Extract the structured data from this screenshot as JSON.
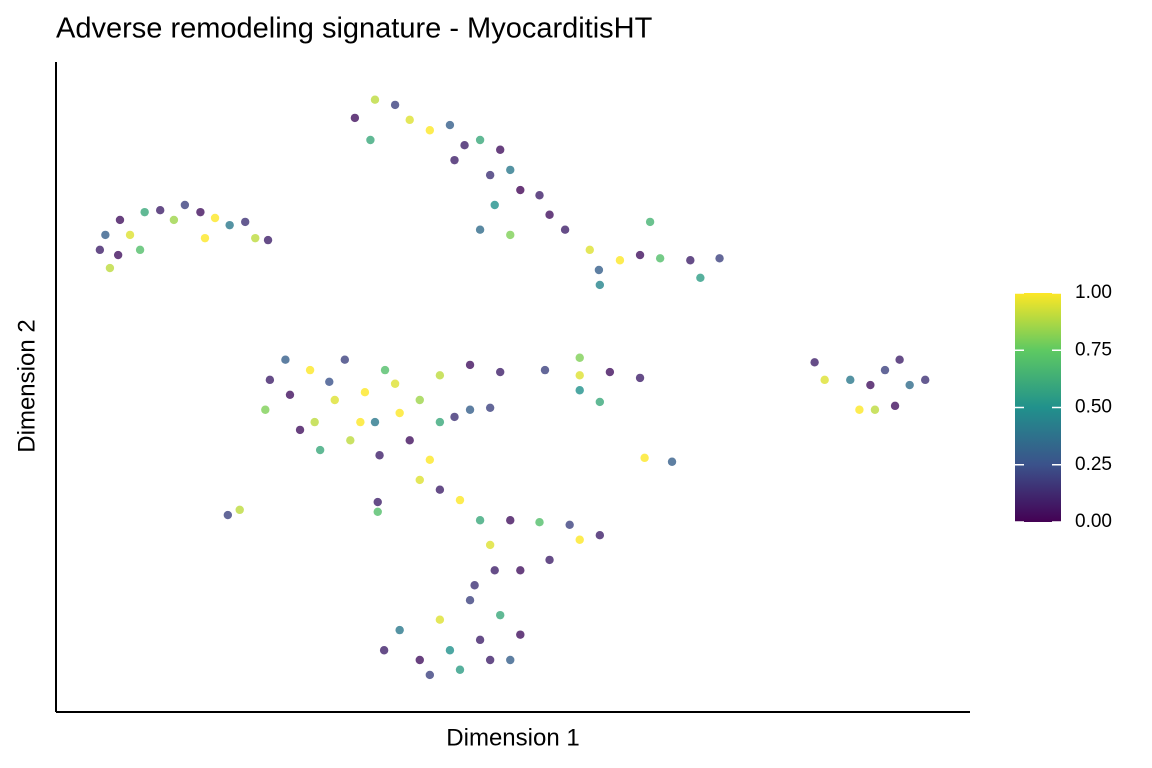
{
  "chart_data": {
    "type": "scatter",
    "title": "Adverse remodeling signature - MyocarditisHT",
    "x_label": "Dimension 1",
    "y_label": "Dimension 2",
    "xlim": [
      0,
      100
    ],
    "ylim": [
      0,
      100
    ],
    "x": [
      4.8,
      5.9,
      5.4,
      7.0,
      8.1,
      9.7,
      11.4,
      12.9,
      14.1,
      15.8,
      17.4,
      19.0,
      20.7,
      21.8,
      23.2,
      9.2,
      16.3,
      6.8,
      32.7,
      34.9,
      37.1,
      38.7,
      40.9,
      43.1,
      44.7,
      46.4,
      48.6,
      49.7,
      47.5,
      50.8,
      48.0,
      52.9,
      46.4,
      49.7,
      54.0,
      55.7,
      58.4,
      59.4,
      61.7,
      63.9,
      66.1,
      69.4,
      72.6,
      59.5,
      70.5,
      65.0,
      34.4,
      43.6,
      23.4,
      22.9,
      25.1,
      26.7,
      27.8,
      28.9,
      30.5,
      31.6,
      32.2,
      33.8,
      34.9,
      35.4,
      37.1,
      37.6,
      38.7,
      39.8,
      40.9,
      42.0,
      43.6,
      45.3,
      47.5,
      25.6,
      28.3,
      33.3,
      29.9,
      36.0,
      42.0,
      45.3,
      48.6,
      53.5,
      57.3,
      60.6,
      63.9,
      57.3,
      59.5,
      57.3,
      83.0,
      84.1,
      87.9,
      89.1,
      90.7,
      92.3,
      93.4,
      95.1,
      91.8,
      89.6,
      86.9,
      18.8,
      20.1,
      64.4,
      67.4,
      35.2,
      35.2,
      39.8,
      42.0,
      44.2,
      46.4,
      47.5,
      48.0,
      49.7,
      52.9,
      56.2,
      59.5,
      57.3,
      54.0,
      50.8,
      45.8,
      35.9,
      37.6,
      39.8,
      42.0,
      43.1,
      45.3,
      46.4,
      48.6,
      49.7,
      50.8,
      40.9,
      44.2,
      47.5
    ],
    "y": [
      71.1,
      68.3,
      73.4,
      75.7,
      73.4,
      76.9,
      77.2,
      75.7,
      78.0,
      76.9,
      76.0,
      74.9,
      75.4,
      72.9,
      72.6,
      71.1,
      72.9,
      70.3,
      91.4,
      94.2,
      93.4,
      91.1,
      89.5,
      90.3,
      87.2,
      88.0,
      86.5,
      83.4,
      82.6,
      80.3,
      78.0,
      79.5,
      74.2,
      73.4,
      76.5,
      74.2,
      71.1,
      68.0,
      69.5,
      70.3,
      69.8,
      69.5,
      69.8,
      65.7,
      66.8,
      75.4,
      88.0,
      84.9,
      51.1,
      46.5,
      54.2,
      43.4,
      52.6,
      40.3,
      48.0,
      54.2,
      41.8,
      49.2,
      44.6,
      39.5,
      50.5,
      46.0,
      41.8,
      48.0,
      38.8,
      44.6,
      45.4,
      46.5,
      46.8,
      48.8,
      44.6,
      44.6,
      50.8,
      52.6,
      51.8,
      53.4,
      52.3,
      52.6,
      51.8,
      52.3,
      51.4,
      54.5,
      47.7,
      49.5,
      53.8,
      51.1,
      46.5,
      50.3,
      52.6,
      54.2,
      50.3,
      51.1,
      47.1,
      46.5,
      51.1,
      30.3,
      31.1,
      39.1,
      38.5,
      32.3,
      30.8,
      35.7,
      34.2,
      32.6,
      29.5,
      25.7,
      21.8,
      29.5,
      29.2,
      28.8,
      27.2,
      26.5,
      23.4,
      21.8,
      19.5,
      9.5,
      12.6,
      8.0,
      14.2,
      9.5,
      17.2,
      11.1,
      14.9,
      8.0,
      11.9,
      5.7,
      6.5,
      8.0
    ],
    "values": [
      0.1,
      0.9,
      0.3,
      0.05,
      0.95,
      0.6,
      0.1,
      0.85,
      0.2,
      0.05,
      1,
      0.4,
      0.15,
      0.9,
      0.1,
      0.7,
      1,
      0.05,
      0.05,
      0.9,
      0.2,
      0.95,
      1,
      0.3,
      0.1,
      0.6,
      0.05,
      0.4,
      0.15,
      0.02,
      0.5,
      0.1,
      0.35,
      0.8,
      0.05,
      0.1,
      0.95,
      0.3,
      1,
      0.05,
      0.7,
      0.1,
      0.2,
      0.45,
      0.55,
      0.65,
      0.6,
      0.1,
      0.1,
      0.8,
      0.3,
      0.05,
      1,
      0.6,
      0.95,
      0.2,
      0.9,
      1,
      0.4,
      0.1,
      0.95,
      1,
      0.05,
      0.85,
      1,
      0.6,
      0.15,
      0.3,
      0.2,
      0.05,
      0.9,
      1,
      0.25,
      0.7,
      0.9,
      0.05,
      0.1,
      0.2,
      0.95,
      0.05,
      0.1,
      0.8,
      0.6,
      0.5,
      0.1,
      0.95,
      1,
      0.05,
      0.2,
      0.1,
      0.35,
      0.15,
      0.05,
      0.9,
      0.4,
      0.2,
      0.9,
      1,
      0.3,
      0.1,
      0.7,
      0.95,
      0.1,
      1,
      0.6,
      0.95,
      0.1,
      0.05,
      0.7,
      0.2,
      0.1,
      1,
      0.1,
      0.05,
      0.15,
      0.1,
      0.4,
      0.05,
      0.95,
      0.5,
      0.2,
      0.1,
      0.6,
      0.3,
      0.05,
      0.2,
      0.55,
      0.1
    ],
    "colorbar": {
      "lim": [
        0,
        1
      ],
      "ticks": [
        {
          "value": 0,
          "label": "0.00"
        },
        {
          "value": 0.25,
          "label": "0.25"
        },
        {
          "value": 0.5,
          "label": "0.50"
        },
        {
          "value": 0.75,
          "label": "0.75"
        },
        {
          "value": 1,
          "label": "1.00"
        }
      ],
      "colors": [
        "#440154",
        "#3b528b",
        "#21918c",
        "#5ec962",
        "#fde725"
      ]
    },
    "point_opacity": 0.8
  }
}
